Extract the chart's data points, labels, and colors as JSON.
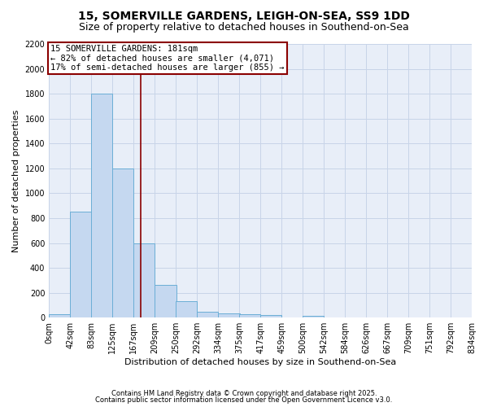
{
  "title1": "15, SOMERVILLE GARDENS, LEIGH-ON-SEA, SS9 1DD",
  "title2": "Size of property relative to detached houses in Southend-on-Sea",
  "xlabel": "Distribution of detached houses by size in Southend-on-Sea",
  "ylabel": "Number of detached properties",
  "bin_labels": [
    "0sqm",
    "42sqm",
    "83sqm",
    "125sqm",
    "167sqm",
    "209sqm",
    "250sqm",
    "292sqm",
    "334sqm",
    "375sqm",
    "417sqm",
    "459sqm",
    "500sqm",
    "542sqm",
    "584sqm",
    "626sqm",
    "667sqm",
    "709sqm",
    "751sqm",
    "792sqm",
    "834sqm"
  ],
  "bar_heights": [
    25,
    850,
    1800,
    1200,
    600,
    260,
    130,
    45,
    35,
    25,
    20,
    0,
    15,
    0,
    0,
    0,
    0,
    0,
    0,
    0
  ],
  "bar_color": "#c5d8f0",
  "bar_edge_color": "#6baed6",
  "bin_starts": [
    0,
    42,
    83,
    125,
    167,
    209,
    250,
    292,
    334,
    375,
    417,
    459,
    500,
    542,
    584,
    626,
    667,
    709,
    751,
    792
  ],
  "bin_width": 42,
  "vline_x": 181,
  "vline_color": "#8b0000",
  "annotation_line1": "15 SOMERVILLE GARDENS: 181sqm",
  "annotation_line2": "← 82% of detached houses are smaller (4,071)",
  "annotation_line3": "17% of semi-detached houses are larger (855) →",
  "annotation_box_color": "#8b0000",
  "ylim": [
    0,
    2200
  ],
  "yticks": [
    0,
    200,
    400,
    600,
    800,
    1000,
    1200,
    1400,
    1600,
    1800,
    2000,
    2200
  ],
  "grid_color": "#c8d4e8",
  "bg_color": "#e8eef8",
  "footnote1": "Contains HM Land Registry data © Crown copyright and database right 2025.",
  "footnote2": "Contains public sector information licensed under the Open Government Licence v3.0.",
  "title_fontsize": 10,
  "subtitle_fontsize": 9,
  "annotation_fontsize": 7.5,
  "axis_label_fontsize": 8,
  "tick_fontsize": 7,
  "footnote_fontsize": 6
}
